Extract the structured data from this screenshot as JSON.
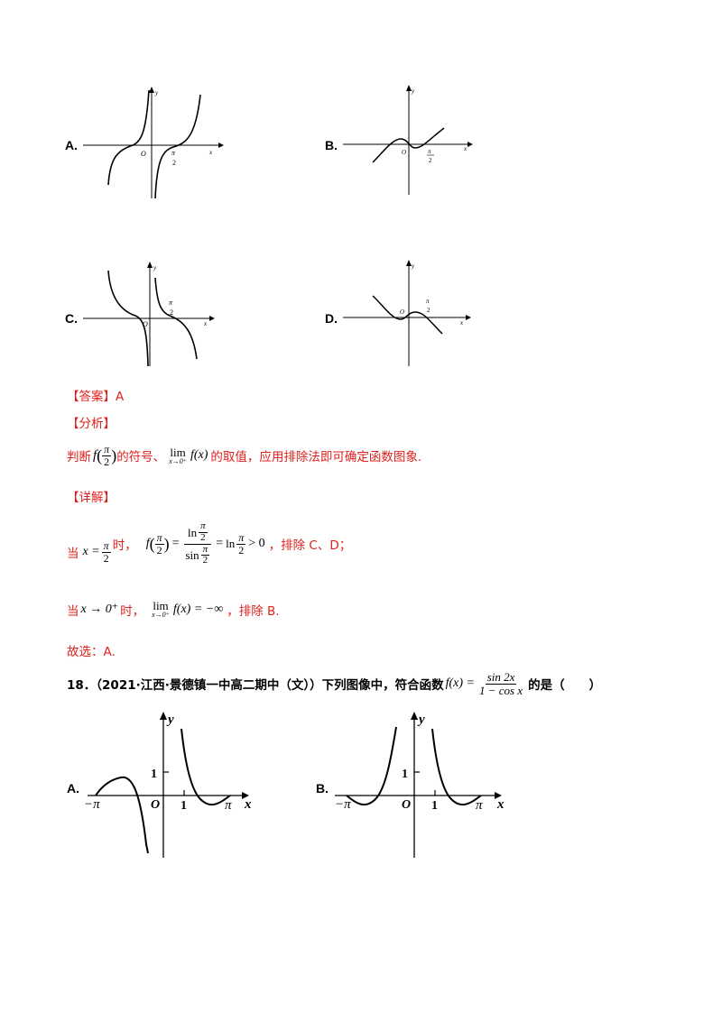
{
  "options_top": [
    {
      "letter": "A.",
      "origin": "O",
      "axis_x": "x",
      "axis_y": "y",
      "tick_num": "π",
      "tick_den": "2"
    },
    {
      "letter": "B.",
      "origin": "O",
      "axis_x": "x",
      "axis_y": "y",
      "tick_num": "π",
      "tick_den": "2"
    },
    {
      "letter": "C.",
      "origin": "O",
      "axis_x": "x",
      "axis_y": "y",
      "tick_num": "π",
      "tick_den": "2"
    },
    {
      "letter": "D.",
      "origin": "O",
      "axis_x": "x",
      "axis_y": "y",
      "tick_num": "π",
      "tick_den": "2"
    }
  ],
  "answer": {
    "label": "【答案】",
    "value": "A"
  },
  "analysis": {
    "label": "【分析】",
    "t1": "判断",
    "f": "f",
    "pi": "π",
    "two": "2",
    "t2": "的符号、",
    "lim": "lim",
    "sub": "x→0⁺",
    "fx": "f(x)",
    "t3": "的取值，应用排除法即可确定函数图象."
  },
  "detail": {
    "label": "【详解】",
    "l1_pre": "当",
    "l1_x": "x =",
    "l1_time": "时，",
    "l1_ln": "ln",
    "l1_sin": "sin",
    "l1_gt": "> 0",
    "l1_post": "，排除 C、D；",
    "l2_pre": "当",
    "l2_x": "x → 0⁺",
    "l2_time": "时，",
    "l2_eq": "f(x) = −∞",
    "l2_post": "，排除 B.",
    "l3": "故选：A."
  },
  "question": {
    "number": "18．（2021·江西·景德镇一中高二期中（文））下列图像中，符合函数",
    "f": "f(x) =",
    "num": "sin 2x",
    "den": "1 − cos x",
    "tail": "的是（　　）"
  },
  "options_bottom": [
    {
      "letter": "A.",
      "axis_y": "y",
      "axis_x": "x",
      "one_y": "1",
      "origin": "O",
      "one_x": "1",
      "neg_pi": "−π",
      "pi": "π"
    },
    {
      "letter": "B.",
      "axis_y": "y",
      "axis_x": "x",
      "one_y": "1",
      "origin": "O",
      "one_x": "1",
      "neg_pi": "−π",
      "pi": "π"
    }
  ]
}
